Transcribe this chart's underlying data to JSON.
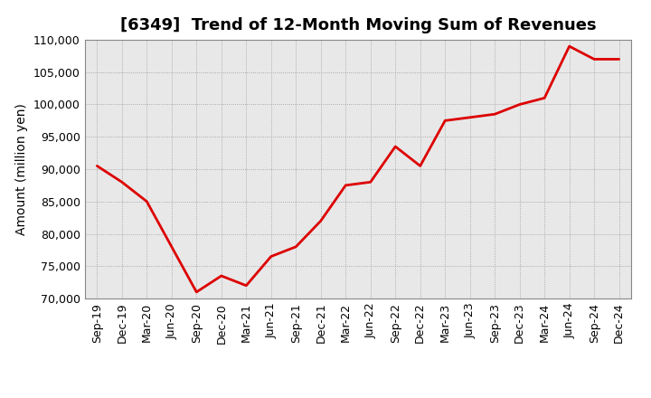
{
  "title": "[6349]  Trend of 12-Month Moving Sum of Revenues",
  "ylabel": "Amount (million yen)",
  "line_color": "#dd0000",
  "background_color": "#ffffff",
  "plot_bg_color": "#e8e8e8",
  "grid_color": "#999999",
  "ylim": [
    70000,
    110000
  ],
  "yticks": [
    70000,
    75000,
    80000,
    85000,
    90000,
    95000,
    100000,
    105000,
    110000
  ],
  "x_labels": [
    "Sep-19",
    "Dec-19",
    "Mar-20",
    "Jun-20",
    "Sep-20",
    "Dec-20",
    "Mar-21",
    "Jun-21",
    "Sep-21",
    "Dec-21",
    "Mar-22",
    "Jun-22",
    "Sep-22",
    "Dec-22",
    "Mar-23",
    "Jun-23",
    "Sep-23",
    "Dec-23",
    "Mar-24",
    "Jun-24",
    "Sep-24",
    "Dec-24"
  ],
  "values": [
    90500,
    88000,
    85000,
    78000,
    71000,
    73500,
    72000,
    76500,
    78000,
    82000,
    87500,
    88000,
    93500,
    90500,
    97500,
    98000,
    98500,
    100000,
    101000,
    109000,
    107000,
    107000
  ],
  "title_fontsize": 13,
  "label_fontsize": 10,
  "tick_fontsize": 9
}
